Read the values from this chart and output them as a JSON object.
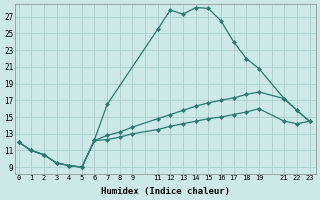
{
  "xlabel": "Humidex (Indice chaleur)",
  "bg_color": "#cce8e8",
  "line_color": "#2a7a72",
  "grid_color": "#aacfcf",
  "ytick_vals": [
    9,
    11,
    13,
    15,
    17,
    19,
    21,
    23,
    25,
    27
  ],
  "xtick_positions": [
    0,
    1,
    2,
    3,
    4,
    5,
    6,
    7,
    8,
    9,
    10,
    11,
    12,
    13,
    14,
    15,
    16,
    17,
    18,
    19,
    20,
    21,
    22,
    23
  ],
  "xtick_labels": [
    "0",
    "1",
    "2",
    "3",
    "4",
    "5",
    "6",
    "7",
    "8",
    "9",
    "",
    "11",
    "12",
    "13",
    "14",
    "15",
    "16",
    "17",
    "18",
    "19",
    "",
    "21",
    "22",
    "23"
  ],
  "xlim": [
    -0.3,
    23.5
  ],
  "ylim": [
    8.2,
    28.5
  ],
  "line1": {
    "x": [
      0,
      1,
      2,
      3,
      4,
      5,
      6,
      7,
      11,
      12,
      13,
      14,
      15,
      16,
      17,
      18,
      19,
      21,
      22,
      23
    ],
    "y": [
      12.0,
      11.0,
      10.5,
      9.5,
      9.2,
      9.0,
      12.3,
      16.5,
      25.5,
      27.8,
      27.3,
      28.1,
      28.0,
      26.5,
      24.0,
      22.0,
      20.8,
      17.2,
      15.8,
      14.5
    ]
  },
  "line2": {
    "x": [
      0,
      1,
      2,
      3,
      4,
      5,
      6,
      7,
      8,
      9,
      11,
      12,
      13,
      14,
      15,
      16,
      17,
      18,
      19,
      21,
      22,
      23
    ],
    "y": [
      12.0,
      11.0,
      10.5,
      9.5,
      9.2,
      9.0,
      12.2,
      12.8,
      13.2,
      13.8,
      14.8,
      15.3,
      15.8,
      16.3,
      16.7,
      17.0,
      17.3,
      17.7,
      18.0,
      17.2,
      15.8,
      14.5
    ]
  },
  "line3": {
    "x": [
      0,
      1,
      2,
      3,
      4,
      5,
      6,
      7,
      8,
      9,
      11,
      12,
      13,
      14,
      15,
      16,
      17,
      18,
      19,
      21,
      22,
      23
    ],
    "y": [
      12.0,
      11.0,
      10.5,
      9.5,
      9.2,
      9.0,
      12.2,
      12.3,
      12.6,
      13.0,
      13.5,
      13.9,
      14.2,
      14.5,
      14.8,
      15.0,
      15.3,
      15.6,
      16.0,
      14.5,
      14.2,
      14.5
    ]
  },
  "markersize": 2.5,
  "linewidth": 0.9
}
